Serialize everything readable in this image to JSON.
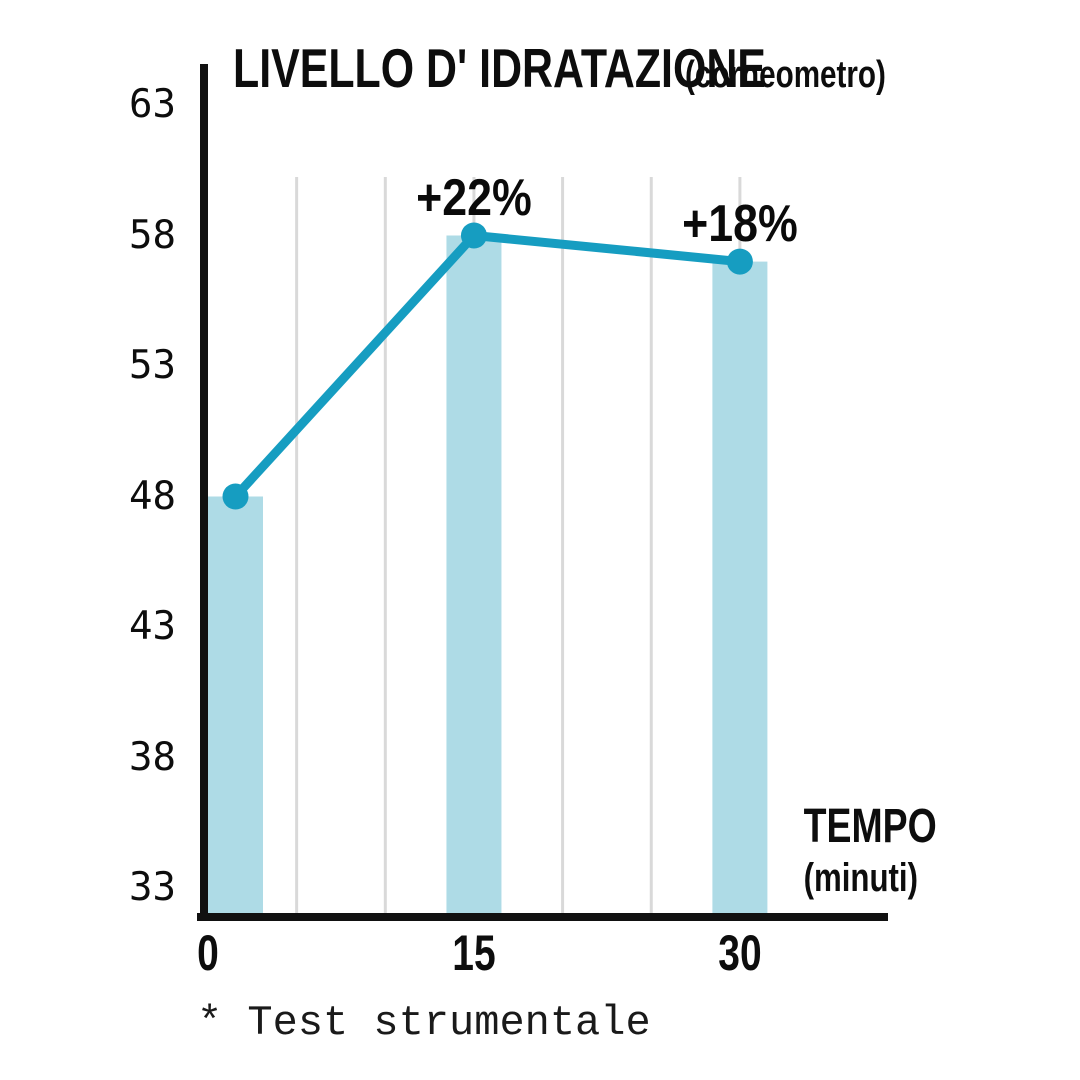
{
  "page": {
    "background": "#ffffff"
  },
  "chart_data": {
    "type": "bar+line",
    "title": "LIVELLO D' IDRATAZIONE",
    "title_suffix": "(corneometro)",
    "xlabel": "TEMPO",
    "xlabel_sub": "(minuti)",
    "footnote": "* Test strumentale",
    "x": [
      0,
      15,
      30
    ],
    "x_tick_labels": [
      "0",
      "15",
      "30"
    ],
    "y_ticks": [
      63,
      58,
      53,
      48,
      43,
      38,
      33
    ],
    "ylim": [
      33,
      63
    ],
    "x_gridlines": [
      5,
      10,
      15,
      20,
      25,
      30
    ],
    "series": [
      {
        "name": "hydration-bars",
        "type": "bar",
        "values": [
          48,
          58,
          57
        ]
      },
      {
        "name": "hydration-line",
        "type": "line",
        "values": [
          48,
          58,
          57
        ]
      }
    ],
    "annotations": [
      {
        "point_index": 1,
        "label": "+22%"
      },
      {
        "point_index": 2,
        "label": "+18%"
      }
    ],
    "legend": "none",
    "grid": "vertical-only",
    "colors": {
      "bar": "#AEDBE6",
      "line": "#169DC1",
      "marker": "#169DC1",
      "gridline": "#D9D9D9",
      "axis": "#111111",
      "text": "#0D0D0D"
    }
  }
}
